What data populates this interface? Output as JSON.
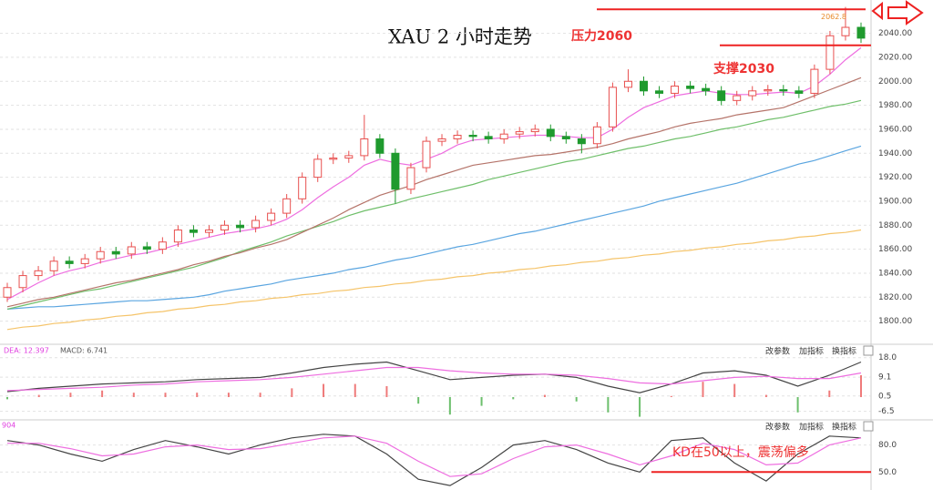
{
  "chart_data": [
    {
      "type": "candlestick",
      "title": "XAU 2 小时走势",
      "open": [
        1820,
        1828,
        1838,
        1842,
        1850,
        1848,
        1852,
        1858,
        1856,
        1862,
        1860,
        1866,
        1876,
        1874,
        1876,
        1880,
        1878,
        1884,
        1890,
        1902,
        1920,
        1935,
        1936,
        1938,
        1952,
        1940,
        1910,
        1928,
        1950,
        1952,
        1955,
        1954,
        1952,
        1956,
        1958,
        1960,
        1954,
        1952,
        1948,
        1962,
        1995,
        2000,
        1992,
        1990,
        1996,
        1994,
        1992,
        1984,
        1988,
        1992,
        1993,
        1992,
        1990,
        2010,
        2038,
        2045
      ],
      "high": [
        1832,
        1842,
        1846,
        1854,
        1854,
        1856,
        1862,
        1862,
        1866,
        1866,
        1870,
        1880,
        1880,
        1880,
        1884,
        1884,
        1888,
        1894,
        1906,
        1924,
        1939,
        1940,
        1942,
        1972,
        1956,
        1944,
        1932,
        1954,
        1956,
        1959,
        1959,
        1958,
        1960,
        1962,
        1964,
        1964,
        1958,
        1956,
        1966,
        1999,
        2010,
        2004,
        1996,
        2000,
        2000,
        1998,
        1996,
        1992,
        1996,
        1997,
        1997,
        1996,
        2014,
        2042,
        2062,
        2049
      ],
      "low": [
        1816,
        1824,
        1834,
        1838,
        1844,
        1844,
        1848,
        1852,
        1852,
        1856,
        1856,
        1862,
        1870,
        1870,
        1872,
        1874,
        1874,
        1880,
        1886,
        1898,
        1916,
        1931,
        1932,
        1934,
        1936,
        1898,
        1906,
        1924,
        1946,
        1948,
        1950,
        1948,
        1948,
        1952,
        1954,
        1950,
        1948,
        1940,
        1944,
        1958,
        1991,
        1988,
        1986,
        1986,
        1990,
        1988,
        1980,
        1980,
        1984,
        1988,
        1988,
        1986,
        1986,
        2006,
        2034,
        2032
      ],
      "close": [
        1828,
        1838,
        1842,
        1850,
        1848,
        1852,
        1858,
        1856,
        1862,
        1860,
        1866,
        1876,
        1874,
        1876,
        1880,
        1878,
        1884,
        1890,
        1902,
        1920,
        1935,
        1936,
        1938,
        1952,
        1940,
        1910,
        1928,
        1950,
        1952,
        1955,
        1954,
        1952,
        1956,
        1958,
        1960,
        1954,
        1952,
        1948,
        1962,
        1995,
        2000,
        1992,
        1990,
        1996,
        1994,
        1992,
        1984,
        1988,
        1992,
        1993,
        1992,
        1990,
        2010,
        2038,
        2045,
        2036
      ],
      "up_color": "#e8504f",
      "down_color": "#1f9a2e",
      "series": [
        {
          "color": "#f5c46a",
          "values": [
            1793,
            1795,
            1796,
            1798,
            1799,
            1801,
            1802,
            1804,
            1805,
            1807,
            1808,
            1810,
            1811,
            1813,
            1814,
            1816,
            1817,
            1819,
            1820,
            1822,
            1823,
            1825,
            1826,
            1828,
            1829,
            1831,
            1832,
            1834,
            1835,
            1837,
            1838,
            1840,
            1841,
            1843,
            1844,
            1846,
            1847,
            1849,
            1850,
            1852,
            1853,
            1855,
            1856,
            1858,
            1859,
            1861,
            1862,
            1864,
            1865,
            1867,
            1868,
            1870,
            1871,
            1873,
            1874,
            1876
          ]
        },
        {
          "color": "#5aa5e0",
          "values": [
            1810,
            1811,
            1812,
            1812,
            1813,
            1814,
            1815,
            1816,
            1817,
            1817,
            1818,
            1819,
            1820,
            1822,
            1825,
            1827,
            1829,
            1831,
            1834,
            1836,
            1838,
            1840,
            1843,
            1845,
            1848,
            1851,
            1853,
            1856,
            1859,
            1862,
            1864,
            1867,
            1870,
            1873,
            1875,
            1878,
            1881,
            1884,
            1887,
            1890,
            1893,
            1896,
            1900,
            1903,
            1906,
            1909,
            1912,
            1915,
            1919,
            1923,
            1927,
            1931,
            1934,
            1938,
            1942,
            1946
          ]
        },
        {
          "color": "#6fbf6a",
          "values": [
            1810,
            1813,
            1816,
            1819,
            1822,
            1825,
            1827,
            1830,
            1833,
            1836,
            1839,
            1842,
            1845,
            1849,
            1853,
            1858,
            1862,
            1866,
            1871,
            1875,
            1879,
            1883,
            1888,
            1892,
            1895,
            1898,
            1902,
            1905,
            1908,
            1911,
            1914,
            1918,
            1921,
            1924,
            1927,
            1930,
            1933,
            1935,
            1938,
            1941,
            1944,
            1946,
            1949,
            1952,
            1954,
            1957,
            1960,
            1962,
            1965,
            1968,
            1970,
            1973,
            1976,
            1979,
            1981,
            1984
          ]
        },
        {
          "color": "#b5746a",
          "values": [
            1812,
            1815,
            1818,
            1820,
            1823,
            1826,
            1829,
            1832,
            1834,
            1837,
            1840,
            1843,
            1847,
            1850,
            1854,
            1857,
            1861,
            1864,
            1868,
            1874,
            1880,
            1886,
            1893,
            1899,
            1905,
            1909,
            1913,
            1918,
            1922,
            1926,
            1930,
            1932,
            1934,
            1936,
            1938,
            1939,
            1941,
            1943,
            1945,
            1948,
            1952,
            1955,
            1958,
            1962,
            1965,
            1967,
            1969,
            1972,
            1974,
            1976,
            1978,
            1983,
            1988,
            1993,
            1998,
            2003
          ]
        },
        {
          "color": "#ee6ee0",
          "values": [
            1818,
            1825,
            1832,
            1838,
            1842,
            1845,
            1849,
            1852,
            1855,
            1857,
            1860,
            1864,
            1867,
            1870,
            1873,
            1875,
            1877,
            1880,
            1885,
            1893,
            1903,
            1912,
            1920,
            1930,
            1935,
            1932,
            1930,
            1935,
            1940,
            1947,
            1951,
            1952,
            1953,
            1954,
            1955,
            1955,
            1954,
            1953,
            1953,
            1960,
            1970,
            1978,
            1983,
            1988,
            1990,
            1992,
            1990,
            1989,
            1989,
            1990,
            1991,
            1990,
            1996,
            2006,
            2018,
            2028
          ]
        }
      ],
      "ylim": [
        1783,
        2064
      ],
      "yticks": [
        {
          "value": 1800,
          "label": "1800.00"
        },
        {
          "value": 1820,
          "label": "1820.00"
        },
        {
          "value": 1840,
          "label": "1840.00"
        },
        {
          "value": 1860,
          "label": "1860.00"
        },
        {
          "value": 1880,
          "label": "1880.00"
        },
        {
          "value": 1900,
          "label": "1900.00"
        },
        {
          "value": 1920,
          "label": "1920.00"
        },
        {
          "value": 1940,
          "label": "1940.00"
        },
        {
          "value": 1960,
          "label": "1960.00"
        },
        {
          "value": 1980,
          "label": "1980.00"
        },
        {
          "value": 2000,
          "label": "2000.00"
        },
        {
          "value": 2020,
          "label": "2020.00"
        },
        {
          "value": 2040,
          "label": "2040.00"
        }
      ],
      "grid": true,
      "annotations": [
        {
          "text": "压力2060",
          "value": 2060
        },
        {
          "text": "支撑2030",
          "value": 2030
        },
        {
          "text": "2062.8",
          "value": 2062.8
        }
      ]
    },
    {
      "type": "macd",
      "legend": [
        "DEA: 12.397",
        "MACD: 6.741"
      ],
      "histogram": {
        "up_color": "#ef7a7a",
        "down_color": "#6cbf6c",
        "values": [
          -1,
          1,
          2,
          3,
          2,
          2,
          2,
          2,
          2,
          4,
          6,
          6,
          5,
          -3,
          -8,
          -4,
          -1,
          1,
          -2,
          -7,
          -9,
          0.5,
          7,
          6,
          1,
          -7,
          3,
          10
        ]
      },
      "series": [
        {
          "color": "#444444",
          "values": [
            2.5,
            4,
            5,
            6,
            6.5,
            7,
            8,
            8.5,
            9,
            11,
            13.5,
            15,
            16,
            12,
            8,
            9,
            10,
            10.5,
            9,
            5,
            2,
            6,
            11,
            12,
            10,
            5,
            10,
            16
          ]
        },
        {
          "color": "#ee6ee0",
          "values": [
            3,
            3.5,
            4,
            4.5,
            5.5,
            6,
            7,
            7.5,
            8,
            9,
            10.5,
            12,
            13.5,
            13.5,
            12,
            11,
            10.5,
            10.5,
            10,
            8.5,
            6.5,
            6,
            7.5,
            9,
            9.5,
            8.5,
            8.5,
            11
          ]
        }
      ],
      "ylim": [
        -10,
        23.3
      ],
      "yticks": [
        {
          "value": 18,
          "label": "18.0"
        },
        9.1,
        0.5,
        -6.5
      ]
    },
    {
      "type": "kd",
      "label": "904",
      "series": [
        {
          "color": "#444444",
          "values": [
            85,
            80,
            70,
            62,
            75,
            85,
            78,
            70,
            80,
            88,
            92,
            90,
            70,
            42,
            35,
            55,
            80,
            85,
            75,
            60,
            50,
            85,
            88,
            60,
            40,
            70,
            90,
            88
          ]
        },
        {
          "color": "#ee6ee0",
          "values": [
            82,
            82,
            76,
            68,
            70,
            78,
            80,
            75,
            76,
            82,
            88,
            90,
            82,
            62,
            45,
            48,
            65,
            78,
            80,
            70,
            58,
            68,
            82,
            75,
            58,
            60,
            80,
            88
          ]
        }
      ],
      "ylim": [
        30,
        107
      ],
      "yticks": [
        {
          "value": 80,
          "label": "80.0"
        },
        {
          "value": 50,
          "label": "50.0"
        }
      ],
      "annotations": [
        {
          "text": "KD在50以上，震荡偏多",
          "value": 50
        }
      ]
    }
  ],
  "toolbar": {
    "buttons": [
      "改参数",
      "加指标",
      "换指标"
    ]
  }
}
